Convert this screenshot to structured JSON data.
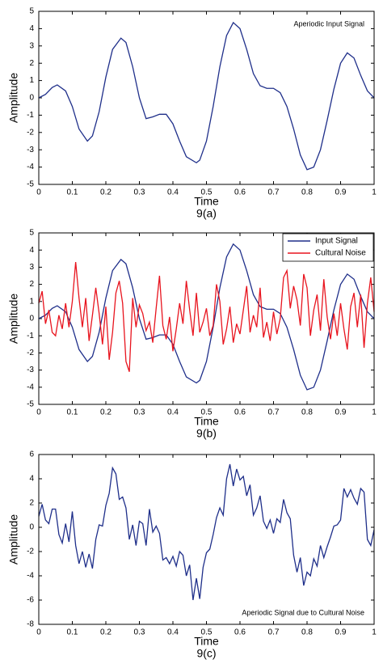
{
  "chart_data": [
    {
      "type": "line",
      "xlabel": "Time",
      "ylabel": "Amplitude",
      "caption": "9(a)",
      "annotation": "Aperiodic Input Signal",
      "annotation_position": "upper right",
      "xlim": [
        0,
        1
      ],
      "xticks": [
        0,
        0.1,
        0.2,
        0.3,
        0.4,
        0.5,
        0.6,
        0.7,
        0.8,
        0.9,
        1
      ],
      "ylim": [
        -5,
        5
      ],
      "yticks": [
        -5,
        -4,
        -3,
        -2,
        -1,
        0,
        1,
        2,
        3,
        4,
        5
      ],
      "series": [
        {
          "color": "#1f2f8a",
          "x": [
            0,
            0.02,
            0.04,
            0.055,
            0.08,
            0.1,
            0.12,
            0.145,
            0.16,
            0.18,
            0.2,
            0.22,
            0.245,
            0.26,
            0.28,
            0.3,
            0.32,
            0.34,
            0.36,
            0.38,
            0.4,
            0.42,
            0.44,
            0.47,
            0.48,
            0.5,
            0.52,
            0.54,
            0.56,
            0.58,
            0.6,
            0.62,
            0.64,
            0.66,
            0.68,
            0.7,
            0.72,
            0.74,
            0.76,
            0.78,
            0.8,
            0.82,
            0.84,
            0.86,
            0.88,
            0.9,
            0.92,
            0.94,
            0.96,
            0.98,
            1
          ],
          "values": [
            0,
            0.2,
            0.6,
            0.75,
            0.4,
            -0.5,
            -1.8,
            -2.5,
            -2.2,
            -0.8,
            1.2,
            2.8,
            3.45,
            3.2,
            1.8,
            0,
            -1.2,
            -1.1,
            -0.95,
            -0.95,
            -1.5,
            -2.5,
            -3.4,
            -3.75,
            -3.6,
            -2.5,
            -0.5,
            1.8,
            3.6,
            4.35,
            4.0,
            2.8,
            1.4,
            0.7,
            0.55,
            0.55,
            0.3,
            -0.5,
            -1.8,
            -3.3,
            -4.15,
            -4.0,
            -3.0,
            -1.3,
            0.5,
            2.0,
            2.6,
            2.3,
            1.3,
            0.4,
            0
          ]
        }
      ]
    },
    {
      "type": "line",
      "xlabel": "Time",
      "ylabel": "Amplitude",
      "caption": "9(b)",
      "legend": "upper right",
      "xlim": [
        0,
        1
      ],
      "xticks": [
        0,
        0.1,
        0.2,
        0.3,
        0.4,
        0.5,
        0.6,
        0.7,
        0.8,
        0.9,
        1
      ],
      "ylim": [
        -5,
        5
      ],
      "yticks": [
        -5,
        -4,
        -3,
        -2,
        -1,
        0,
        1,
        2,
        3,
        4,
        5
      ],
      "series": [
        {
          "name": "Input Signal",
          "color": "#1f2f8a",
          "x": [
            0,
            0.02,
            0.04,
            0.055,
            0.08,
            0.1,
            0.12,
            0.145,
            0.16,
            0.18,
            0.2,
            0.22,
            0.245,
            0.26,
            0.28,
            0.3,
            0.32,
            0.34,
            0.36,
            0.38,
            0.4,
            0.42,
            0.44,
            0.47,
            0.48,
            0.5,
            0.52,
            0.54,
            0.56,
            0.58,
            0.6,
            0.62,
            0.64,
            0.66,
            0.68,
            0.7,
            0.72,
            0.74,
            0.76,
            0.78,
            0.8,
            0.82,
            0.84,
            0.86,
            0.88,
            0.9,
            0.92,
            0.94,
            0.96,
            0.98,
            1
          ],
          "values": [
            0,
            0.2,
            0.6,
            0.75,
            0.4,
            -0.5,
            -1.8,
            -2.5,
            -2.2,
            -0.8,
            1.2,
            2.8,
            3.45,
            3.2,
            1.8,
            0,
            -1.2,
            -1.1,
            -0.95,
            -0.95,
            -1.5,
            -2.5,
            -3.4,
            -3.75,
            -3.6,
            -2.5,
            -0.5,
            1.8,
            3.6,
            4.35,
            4.0,
            2.8,
            1.4,
            0.7,
            0.55,
            0.55,
            0.3,
            -0.5,
            -1.8,
            -3.3,
            -4.15,
            -4.0,
            -3.0,
            -1.3,
            0.5,
            2.0,
            2.6,
            2.3,
            1.3,
            0.4,
            0
          ]
        },
        {
          "name": "Cultural Noise",
          "color": "#e8141e",
          "x": [
            0,
            0.01,
            0.02,
            0.03,
            0.04,
            0.05,
            0.06,
            0.07,
            0.08,
            0.09,
            0.1,
            0.11,
            0.12,
            0.13,
            0.14,
            0.15,
            0.16,
            0.17,
            0.18,
            0.19,
            0.2,
            0.21,
            0.22,
            0.23,
            0.24,
            0.25,
            0.26,
            0.27,
            0.28,
            0.29,
            0.3,
            0.31,
            0.32,
            0.33,
            0.34,
            0.35,
            0.36,
            0.37,
            0.38,
            0.39,
            0.4,
            0.41,
            0.42,
            0.43,
            0.44,
            0.45,
            0.46,
            0.47,
            0.48,
            0.49,
            0.5,
            0.51,
            0.52,
            0.53,
            0.54,
            0.55,
            0.56,
            0.57,
            0.58,
            0.59,
            0.6,
            0.61,
            0.62,
            0.63,
            0.64,
            0.65,
            0.66,
            0.67,
            0.68,
            0.69,
            0.7,
            0.71,
            0.72,
            0.73,
            0.74,
            0.75,
            0.76,
            0.77,
            0.78,
            0.79,
            0.8,
            0.81,
            0.82,
            0.83,
            0.84,
            0.85,
            0.86,
            0.87,
            0.88,
            0.89,
            0.9,
            0.91,
            0.92,
            0.93,
            0.94,
            0.95,
            0.96,
            0.97,
            0.98,
            0.99,
            1
          ],
          "values": [
            0.9,
            1.6,
            -0.3,
            0.5,
            -0.8,
            -1.0,
            0.2,
            -0.6,
            0.9,
            -0.5,
            1.0,
            3.3,
            1.2,
            -0.5,
            1.2,
            -1.3,
            0.2,
            1.8,
            0.3,
            -1.5,
            0.7,
            -2.4,
            -0.8,
            1.5,
            2.2,
            0.9,
            -2.5,
            -3.1,
            1.2,
            -0.5,
            0.8,
            0.3,
            -0.7,
            -0.2,
            -1.4,
            0.6,
            2.5,
            -0.4,
            -1.2,
            0.1,
            -1.9,
            -0.6,
            0.9,
            -0.3,
            2.2,
            0.5,
            -1.0,
            1.5,
            -0.8,
            -0.2,
            0.6,
            -1.0,
            -0.4,
            2.0,
            1.0,
            -1.5,
            -0.6,
            0.7,
            -1.4,
            -0.3,
            -0.9,
            0.5,
            1.9,
            -0.8,
            0.2,
            -0.5,
            1.8,
            -1.1,
            -0.2,
            -1.3,
            0.4,
            -0.9,
            0.0,
            2.4,
            2.8,
            0.6,
            1.9,
            1.1,
            -0.4,
            2.6,
            1.8,
            -1.0,
            0.5,
            1.4,
            -0.7,
            2.3,
            0.1,
            -1.2,
            0.3,
            -1.0,
            0.9,
            -0.6,
            -1.8,
            0.7,
            1.5,
            -0.5,
            1.4,
            -1.7,
            0.9,
            2.4,
            0.4
          ]
        }
      ]
    },
    {
      "type": "line",
      "xlabel": "Time",
      "ylabel": "Amplitude",
      "caption": "9(c)",
      "annotation": "Aperiodic Signal due to Cultural Noise",
      "annotation_position": "lower right",
      "xlim": [
        0,
        1
      ],
      "xticks": [
        0,
        0.1,
        0.2,
        0.3,
        0.4,
        0.5,
        0.6,
        0.7,
        0.8,
        0.9,
        1
      ],
      "ylim": [
        -8,
        6
      ],
      "yticks": [
        -8,
        -6,
        -4,
        -2,
        0,
        2,
        4,
        6
      ],
      "series": [
        {
          "color": "#1f2f8a",
          "x": [
            0,
            0.01,
            0.02,
            0.03,
            0.04,
            0.05,
            0.06,
            0.07,
            0.08,
            0.09,
            0.1,
            0.11,
            0.12,
            0.13,
            0.14,
            0.15,
            0.16,
            0.17,
            0.18,
            0.19,
            0.2,
            0.21,
            0.22,
            0.23,
            0.24,
            0.25,
            0.26,
            0.27,
            0.28,
            0.29,
            0.3,
            0.31,
            0.32,
            0.33,
            0.34,
            0.35,
            0.36,
            0.37,
            0.38,
            0.39,
            0.4,
            0.41,
            0.42,
            0.43,
            0.44,
            0.45,
            0.46,
            0.47,
            0.48,
            0.49,
            0.5,
            0.51,
            0.52,
            0.53,
            0.54,
            0.55,
            0.56,
            0.57,
            0.58,
            0.59,
            0.6,
            0.61,
            0.62,
            0.63,
            0.64,
            0.65,
            0.66,
            0.67,
            0.68,
            0.69,
            0.7,
            0.71,
            0.72,
            0.73,
            0.74,
            0.75,
            0.76,
            0.77,
            0.78,
            0.79,
            0.8,
            0.81,
            0.82,
            0.83,
            0.84,
            0.85,
            0.86,
            0.87,
            0.88,
            0.89,
            0.9,
            0.91,
            0.92,
            0.93,
            0.94,
            0.95,
            0.96,
            0.97,
            0.98,
            0.99,
            1
          ],
          "values": [
            0.9,
            1.9,
            0.6,
            0.3,
            1.5,
            1.5,
            -0.6,
            -1.3,
            0.3,
            -1.2,
            1.3,
            -1.5,
            -3.0,
            -2.0,
            -3.3,
            -2.2,
            -3.4,
            -1.0,
            0.2,
            0.1,
            1.8,
            2.8,
            4.9,
            4.4,
            2.3,
            2.5,
            1.6,
            -1.0,
            0.2,
            -1.5,
            0.5,
            0.3,
            -1.5,
            1.5,
            -0.4,
            0.1,
            -0.5,
            -2.7,
            -2.5,
            -3.0,
            -2.4,
            -3.2,
            -2.0,
            -2.3,
            -4.0,
            -3.1,
            -6.0,
            -4.2,
            -5.9,
            -3.3,
            -2.1,
            -1.8,
            -0.6,
            0.8,
            1.6,
            1.0,
            4.0,
            5.2,
            3.4,
            4.8,
            3.9,
            4.2,
            2.6,
            3.5,
            1.0,
            1.6,
            2.6,
            0.5,
            -0.1,
            0.6,
            -0.5,
            0.7,
            0.4,
            2.3,
            1.2,
            0.7,
            -2.3,
            -3.7,
            -2.5,
            -4.8,
            -3.7,
            -4.0,
            -2.6,
            -3.2,
            -1.5,
            -2.5,
            -1.6,
            -0.8,
            0.1,
            0.2,
            0.6,
            3.2,
            2.5,
            3.1,
            2.4,
            1.9,
            3.2,
            2.9,
            -1.0,
            -1.5,
            -0.2
          ]
        }
      ]
    }
  ]
}
